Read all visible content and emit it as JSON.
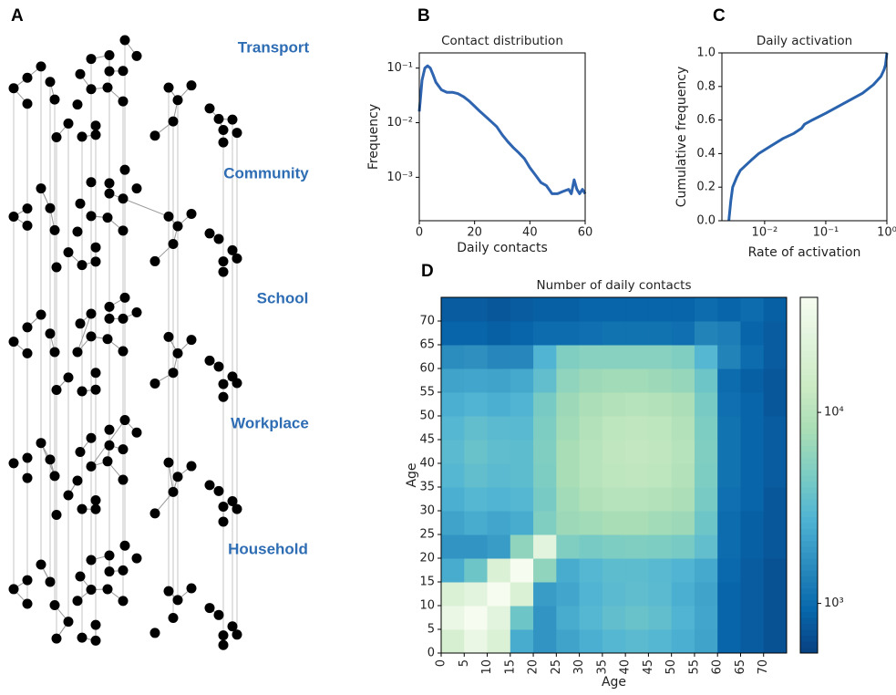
{
  "figure": {
    "panel_labels": [
      "A",
      "B",
      "C",
      "D"
    ],
    "layers": [
      "Transport",
      "Community",
      "School",
      "Workplace",
      "Household"
    ]
  },
  "chart_data": [
    {
      "type": "line",
      "title": "Contact distribution",
      "x_label": "Daily contacts",
      "y_label": "Frequency",
      "x": [
        0,
        1,
        2,
        3,
        4,
        5,
        6,
        8,
        10,
        12,
        14,
        16,
        18,
        20,
        22,
        24,
        26,
        28,
        30,
        32,
        34,
        36,
        38,
        40,
        42,
        44,
        46,
        48,
        50,
        52,
        54,
        55,
        56,
        57,
        58,
        59,
        60
      ],
      "series": [
        {
          "color": "#2e64b0",
          "values": [
            0.016,
            0.06,
            0.1,
            0.11,
            0.1,
            0.075,
            0.055,
            0.04,
            0.036,
            0.036,
            0.034,
            0.03,
            0.025,
            0.02,
            0.016,
            0.013,
            0.0105,
            0.0085,
            0.006,
            0.0045,
            0.0035,
            0.0028,
            0.0022,
            0.0015,
            0.0011,
            0.0008,
            0.0007,
            0.0005,
            0.0005,
            0.00055,
            0.0006,
            0.0005,
            0.0009,
            0.0006,
            0.0005,
            0.0006,
            0.0005
          ]
        }
      ],
      "xlim": [
        0,
        60
      ],
      "xticks": [
        0,
        20,
        40,
        60
      ],
      "ylim": [
        0.00016,
        0.19
      ],
      "yscale": "log",
      "yticks": [
        {
          "value": 0.001,
          "label": "10⁻³"
        },
        {
          "value": 0.01,
          "label": "10⁻²"
        },
        {
          "value": 0.1,
          "label": "10⁻¹"
        }
      ]
    },
    {
      "type": "line",
      "title": "Daily activation",
      "x_label": "Rate of activation",
      "y_label": "Cumulative frequency",
      "x": [
        0.0026,
        0.0028,
        0.003,
        0.0035,
        0.004,
        0.006,
        0.008,
        0.012,
        0.02,
        0.03,
        0.04,
        0.045,
        0.06,
        0.1,
        0.2,
        0.4,
        0.6,
        0.8,
        0.9,
        0.95,
        1
      ],
      "series": [
        {
          "color": "#2a63ad",
          "values": [
            0,
            0.12,
            0.2,
            0.26,
            0.3,
            0.36,
            0.4,
            0.44,
            0.49,
            0.52,
            0.55,
            0.575,
            0.6,
            0.64,
            0.7,
            0.76,
            0.81,
            0.86,
            0.9,
            0.93,
            1
          ]
        }
      ],
      "xlim": [
        0.002,
        1
      ],
      "xscale": "log",
      "xticks": [
        {
          "value": 0.01,
          "label": "10⁻²"
        },
        {
          "value": 0.1,
          "label": "10⁻¹"
        },
        {
          "value": 1,
          "label": "10⁰"
        }
      ],
      "ylim": [
        0,
        1
      ],
      "yticks": [
        {
          "value": 0,
          "label": "0.0"
        },
        0.2,
        0.4,
        0.6,
        0.8,
        {
          "value": 1,
          "label": "1.0"
        }
      ]
    },
    {
      "type": "heatmap",
      "title": "Number of daily contacts",
      "x_label": "Age",
      "y_label": "Age",
      "xlim": [
        0,
        75
      ],
      "ylim": [
        0,
        75
      ],
      "xticks": [
        0,
        5,
        10,
        15,
        20,
        25,
        30,
        35,
        40,
        45,
        50,
        55,
        60,
        65,
        70
      ],
      "yticks": [
        0,
        5,
        10,
        15,
        20,
        25,
        30,
        35,
        40,
        45,
        50,
        55,
        60,
        65,
        70
      ],
      "values": [
        [
          18000,
          30000,
          20000,
          2500,
          1800,
          2200,
          2600,
          3000,
          3200,
          3000,
          2600,
          2200,
          900,
          800,
          700
        ],
        [
          30000,
          40000,
          25000,
          4000,
          1800,
          2500,
          3000,
          3500,
          3800,
          3500,
          2800,
          2300,
          900,
          800,
          700
        ],
        [
          20000,
          25000,
          40000,
          20000,
          2000,
          2300,
          2800,
          3200,
          3400,
          3200,
          2600,
          2200,
          900,
          800,
          700
        ],
        [
          2500,
          4000,
          20000,
          40000,
          6000,
          2500,
          3000,
          3300,
          3300,
          3100,
          2800,
          2400,
          950,
          800,
          700
        ],
        [
          1800,
          1800,
          2000,
          6000,
          25000,
          5000,
          4500,
          4800,
          5000,
          4800,
          4500,
          3500,
          1000,
          850,
          750
        ],
        [
          2200,
          2500,
          2300,
          2500,
          5000,
          7000,
          7500,
          8000,
          8000,
          7500,
          7000,
          4000,
          1000,
          850,
          750
        ],
        [
          2600,
          3000,
          2800,
          3000,
          4500,
          7500,
          9000,
          10000,
          10000,
          9500,
          8500,
          4500,
          1050,
          900,
          750
        ],
        [
          3000,
          3500,
          3200,
          3300,
          4800,
          8000,
          10000,
          11000,
          11500,
          11000,
          9500,
          4800,
          1100,
          900,
          800
        ],
        [
          3200,
          3800,
          3400,
          3300,
          5000,
          8000,
          10000,
          11500,
          12000,
          11500,
          10000,
          5000,
          1100,
          900,
          800
        ],
        [
          3000,
          3500,
          3200,
          3100,
          4800,
          7500,
          9500,
          11000,
          11500,
          11000,
          9500,
          4800,
          1100,
          900,
          800
        ],
        [
          2600,
          2800,
          2600,
          2800,
          4500,
          7000,
          8500,
          9500,
          10000,
          9500,
          8500,
          4500,
          1050,
          900,
          750
        ],
        [
          2200,
          2300,
          2200,
          2400,
          3500,
          6000,
          7000,
          7500,
          7500,
          7000,
          6500,
          4000,
          1000,
          850,
          750
        ],
        [
          1600,
          1700,
          1500,
          1500,
          2800,
          5000,
          5500,
          5500,
          5500,
          5500,
          5000,
          3000,
          1400,
          1000,
          800
        ],
        [
          900,
          900,
          850,
          900,
          1000,
          1000,
          1050,
          1100,
          1100,
          1100,
          1050,
          1400,
          1300,
          900,
          800
        ],
        [
          800,
          800,
          750,
          800,
          850,
          850,
          900,
          900,
          900,
          900,
          900,
          1000,
          900,
          1000,
          850
        ]
      ],
      "colorbar": {
        "lim": [
          550,
          40000
        ],
        "scale": "log",
        "ticks": [
          {
            "value": 1000,
            "label": "10³"
          },
          {
            "value": 10000,
            "label": "10⁴"
          }
        ]
      },
      "colormap": [
        "#084081",
        "#0868ac",
        "#2b8cbe",
        "#4eb3d3",
        "#7bccc4",
        "#a8ddb5",
        "#ccebc5",
        "#e0f3db",
        "#f7fcf0"
      ]
    }
  ]
}
